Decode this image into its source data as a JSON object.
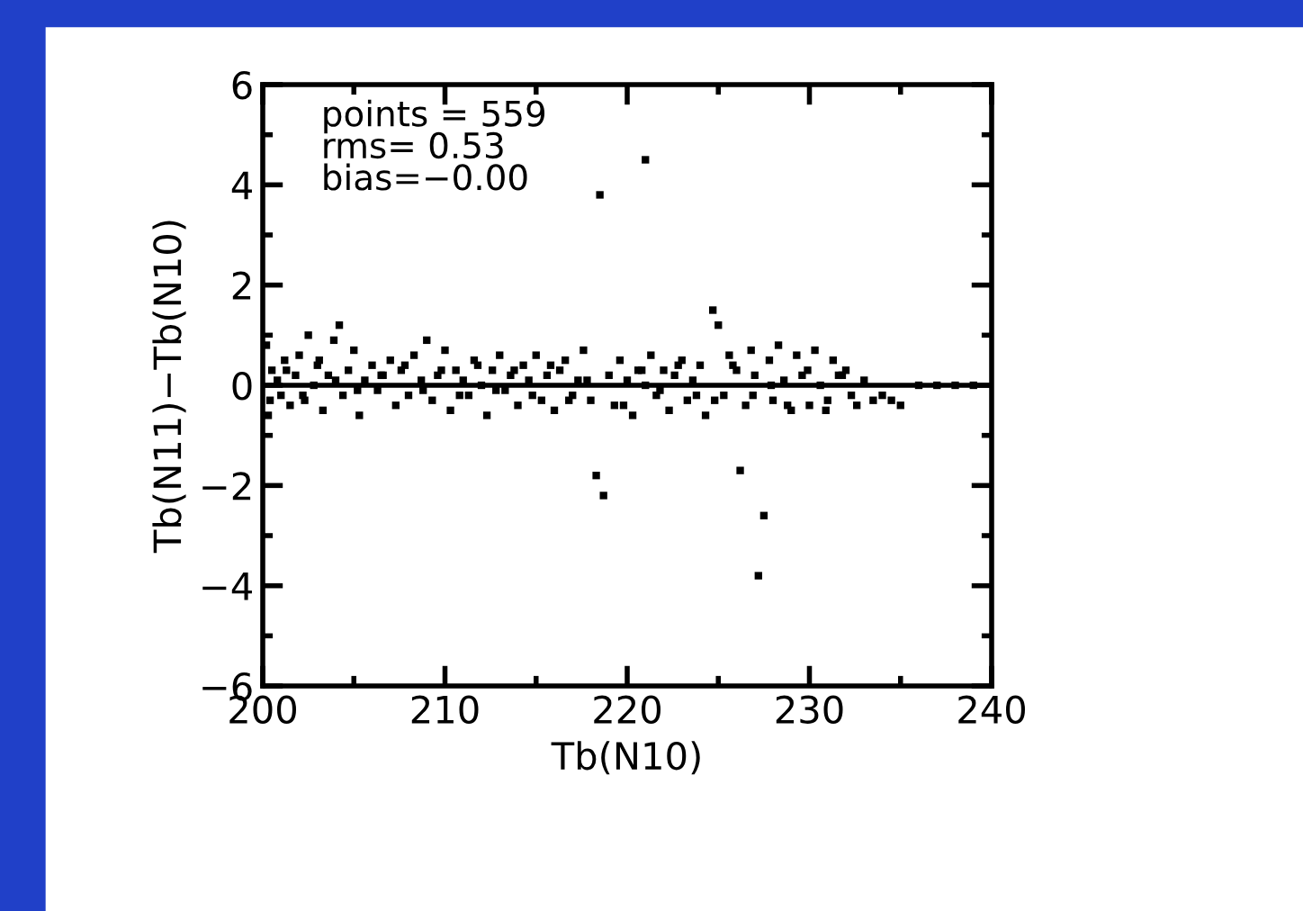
{
  "chart_data": {
    "type": "scatter",
    "xlabel": "Tb(N10)",
    "ylabel": "Tb(N11)−Tb(N10)",
    "annotations": [
      "points = 559",
      "rms= 0.53",
      "bias=−0.00"
    ],
    "xlim": [
      200,
      240
    ],
    "xticks": [
      200,
      210,
      220,
      230,
      240
    ],
    "ylim": [
      -6,
      6
    ],
    "yticks": [
      -6,
      -4,
      -2,
      0,
      2,
      4,
      6
    ],
    "grid": false,
    "marker": "square",
    "ref_lines": [
      {
        "axis": "y",
        "value": 0,
        "color": "#000000"
      }
    ],
    "series": [
      {
        "color": "#000000",
        "x": [
          200.2,
          200.3,
          200.5,
          200.8,
          201.0,
          201.2,
          201.5,
          201.8,
          202.0,
          202.3,
          202.5,
          202.8,
          203.0,
          203.3,
          203.6,
          203.9,
          204.2,
          204.4,
          204.7,
          205.0,
          205.3,
          205.6,
          206.0,
          206.3,
          206.6,
          207.0,
          207.3,
          207.6,
          208.0,
          208.3,
          208.7,
          209.0,
          209.3,
          209.6,
          210.0,
          210.3,
          210.6,
          211.0,
          211.3,
          211.6,
          212.0,
          212.3,
          212.6,
          213.0,
          213.3,
          213.6,
          214.0,
          214.3,
          214.6,
          215.0,
          215.3,
          215.6,
          216.0,
          216.3,
          216.6,
          217.0,
          217.3,
          217.6,
          218.0,
          218.3,
          218.7,
          218.5,
          219.0,
          219.3,
          219.6,
          220.0,
          220.3,
          220.6,
          221.0,
          221.0,
          221.3,
          221.6,
          222.0,
          222.3,
          222.6,
          223.0,
          223.3,
          223.6,
          224.0,
          224.3,
          224.7,
          225.0,
          225.3,
          225.6,
          226.0,
          226.2,
          226.5,
          226.8,
          227.0,
          227.2,
          227.5,
          227.8,
          228.0,
          228.3,
          228.6,
          229.0,
          229.3,
          229.6,
          230.0,
          230.3,
          230.6,
          231.0,
          231.3,
          231.6,
          232.0,
          232.3,
          232.6,
          233.0,
          233.5,
          234.0,
          234.5,
          235.0,
          236.0,
          237.0,
          238.0,
          239.0,
          200.4,
          201.3,
          202.2,
          203.1,
          204.0,
          205.2,
          206.5,
          207.8,
          208.8,
          209.8,
          210.8,
          211.8,
          212.8,
          213.8,
          214.8,
          215.8,
          216.8,
          217.8,
          219.8,
          220.8,
          221.8,
          222.8,
          223.8,
          224.8,
          225.8,
          226.9,
          227.9,
          228.8,
          229.9,
          230.9,
          231.8
        ],
        "values": [
          0.8,
          -0.6,
          0.3,
          0.1,
          -0.2,
          0.5,
          -0.4,
          0.2,
          0.6,
          -0.3,
          1.0,
          0.0,
          0.4,
          -0.5,
          0.2,
          0.9,
          1.2,
          -0.2,
          0.3,
          0.7,
          -0.6,
          0.1,
          0.4,
          -0.1,
          0.2,
          0.5,
          -0.4,
          0.3,
          -0.2,
          0.6,
          0.1,
          0.9,
          -0.3,
          0.2,
          0.7,
          -0.5,
          0.3,
          0.1,
          -0.2,
          0.5,
          0.0,
          -0.6,
          0.3,
          0.6,
          -0.1,
          0.2,
          -0.4,
          0.4,
          0.1,
          0.6,
          -0.3,
          0.2,
          -0.5,
          0.3,
          0.5,
          -0.2,
          0.1,
          0.7,
          -0.3,
          -1.8,
          -2.2,
          3.8,
          0.2,
          -0.4,
          0.5,
          0.1,
          -0.6,
          0.3,
          4.5,
          0.0,
          0.6,
          -0.2,
          0.3,
          -0.5,
          0.2,
          0.5,
          -0.3,
          0.1,
          0.4,
          -0.6,
          1.5,
          1.2,
          -0.2,
          0.6,
          0.3,
          -1.7,
          -0.4,
          0.7,
          0.2,
          -3.8,
          -2.6,
          0.5,
          -0.3,
          0.8,
          0.1,
          -0.5,
          0.6,
          0.2,
          -0.4,
          0.7,
          0.0,
          -0.3,
          0.5,
          0.2,
          0.3,
          -0.2,
          -0.4,
          0.1,
          -0.3,
          -0.2,
          -0.3,
          -0.4,
          0.0,
          0.0,
          0.0,
          0.0,
          -0.3,
          0.3,
          -0.2,
          0.5,
          0.1,
          -0.1,
          0.2,
          0.4,
          -0.1,
          0.3,
          -0.2,
          0.4,
          -0.1,
          0.3,
          -0.2,
          0.4,
          -0.3,
          0.1,
          -0.4,
          0.3,
          -0.1,
          0.4,
          -0.2,
          -0.3,
          0.4,
          -0.2,
          0.0,
          -0.4,
          0.3,
          -0.5,
          0.2
        ]
      }
    ]
  }
}
